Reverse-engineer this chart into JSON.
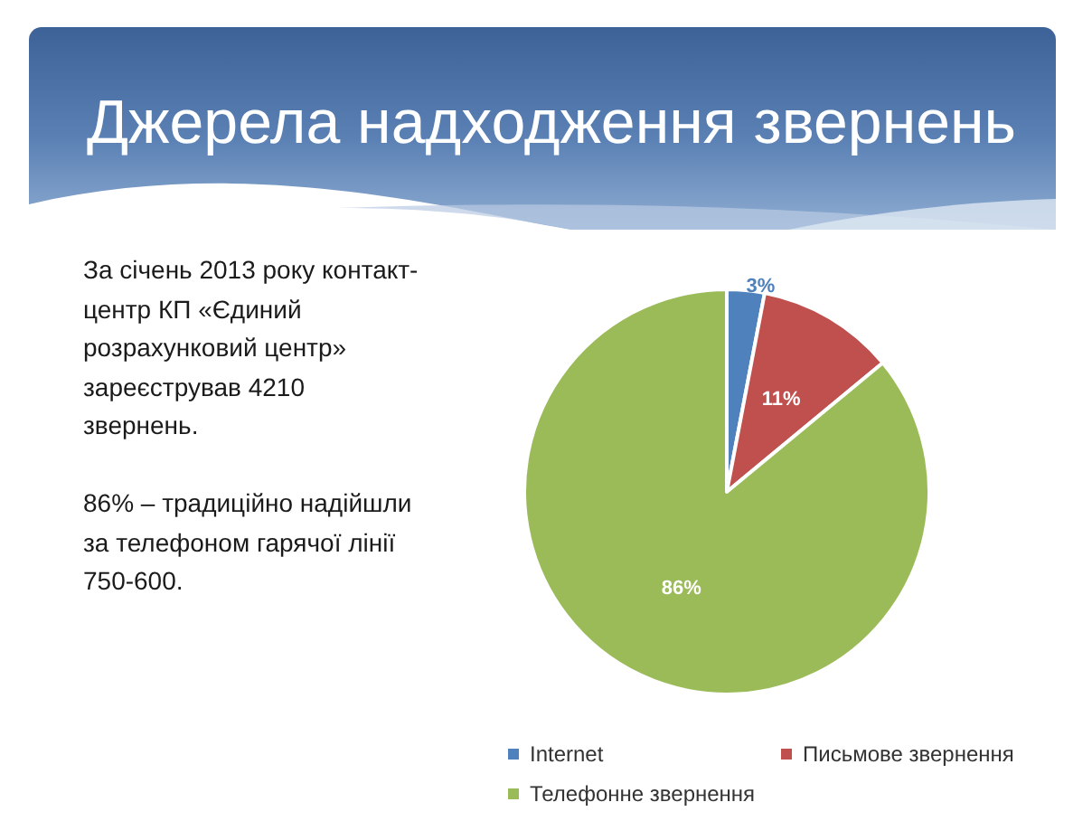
{
  "chart_data": {
    "type": "pie",
    "title": "Джерела надходження звернень",
    "categories": [
      "Internet",
      "Письмове звернення",
      "Телефонне звернення"
    ],
    "values": [
      3,
      11,
      86
    ],
    "colors": [
      "#4f81bd",
      "#c0504d",
      "#9bbb59"
    ],
    "value_labels": [
      "3%",
      "11%",
      "86%"
    ],
    "legend": "bottom",
    "annotations": [
      "За січень 2013 року контакт-центр КП «Єдиний розрахунковий центр» зареєстрував 4210 звернень.",
      "86% – традиційно надійшли за телефоном гарячої лінії 750-600."
    ]
  }
}
